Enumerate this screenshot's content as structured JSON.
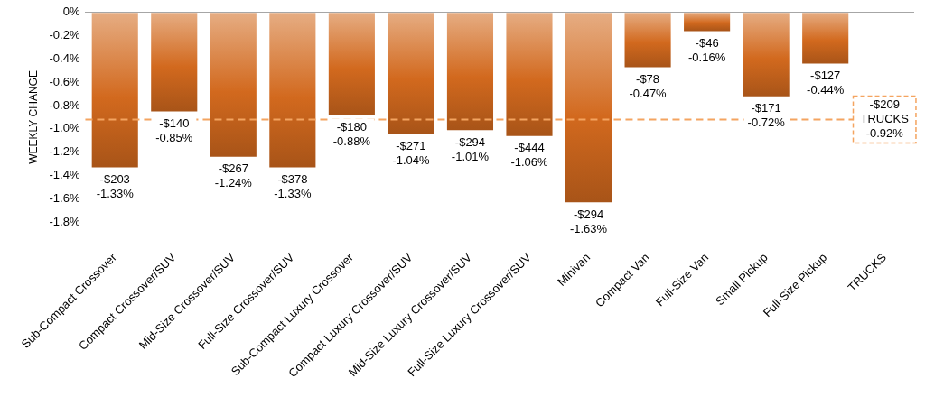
{
  "chart_data": {
    "type": "bar",
    "y_label": "WEEKLY CHANGE",
    "categories": [
      "Sub-Compact Crossover",
      "Compact Crossover/SUV",
      "Mid-Size Crossover/SUV",
      "Full-Size Crossover/SUV",
      "Sub-Compact Luxury Crossover",
      "Compact Luxury Crossover/SUV",
      "Mid-Size Luxury Crossover/SUV",
      "Full-Size Luxury Crossover/SUV",
      "Minivan",
      "Compact Van",
      "Full-Size Van",
      "Small Pickup",
      "Full-Size Pickup",
      "TRUCKS"
    ],
    "values": [
      -1.33,
      -0.85,
      -1.24,
      -1.33,
      -0.88,
      -1.04,
      -1.01,
      -1.06,
      -1.63,
      -0.47,
      -0.16,
      -0.72,
      -0.44,
      null
    ],
    "value_labels": [
      "-1.33%",
      "-0.85%",
      "-1.24%",
      "-1.33%",
      "-0.88%",
      "-1.04%",
      "-1.01%",
      "-1.06%",
      "-1.63%",
      "-0.47%",
      "-0.16%",
      "-0.72%",
      "-0.44%",
      null
    ],
    "dollar_changes": [
      -203,
      -140,
      -267,
      -378,
      -180,
      -271,
      -294,
      -444,
      -294,
      -78,
      -46,
      -171,
      -127,
      null
    ],
    "dollar_change_labels": [
      "-$203",
      "-$140",
      "-$267",
      "-$378",
      "-$180",
      "-$271",
      "-$294",
      "-$444",
      "-$294",
      "-$78",
      "-$46",
      "-$171",
      "-$127",
      null
    ],
    "color": "#d2691e",
    "data_labels": true,
    "grid": false,
    "ylim": [
      -1.8,
      0
    ],
    "yticks": [
      {
        "value": -1.8,
        "label": "-1.8%"
      },
      {
        "value": -1.6,
        "label": "-1.6%"
      },
      {
        "value": -1.4,
        "label": "-1.4%"
      },
      {
        "value": -1.2,
        "label": "-1.2%"
      },
      {
        "value": -1.0,
        "label": "-1.0%"
      },
      {
        "value": -0.8,
        "label": "-0.8%"
      },
      {
        "value": -0.6,
        "label": "-0.6%"
      },
      {
        "value": -0.4,
        "label": "-0.4%"
      },
      {
        "value": -0.2,
        "label": "-0.2%"
      },
      {
        "value": 0,
        "label": "0%"
      }
    ],
    "reference_line": {
      "label": "TRUCKS",
      "value": -0.92,
      "value_label": "-0.92%",
      "dollar_change": -209,
      "dollar_change_label": "-$209",
      "line_style": "dashed",
      "color": "#f4a460"
    }
  }
}
